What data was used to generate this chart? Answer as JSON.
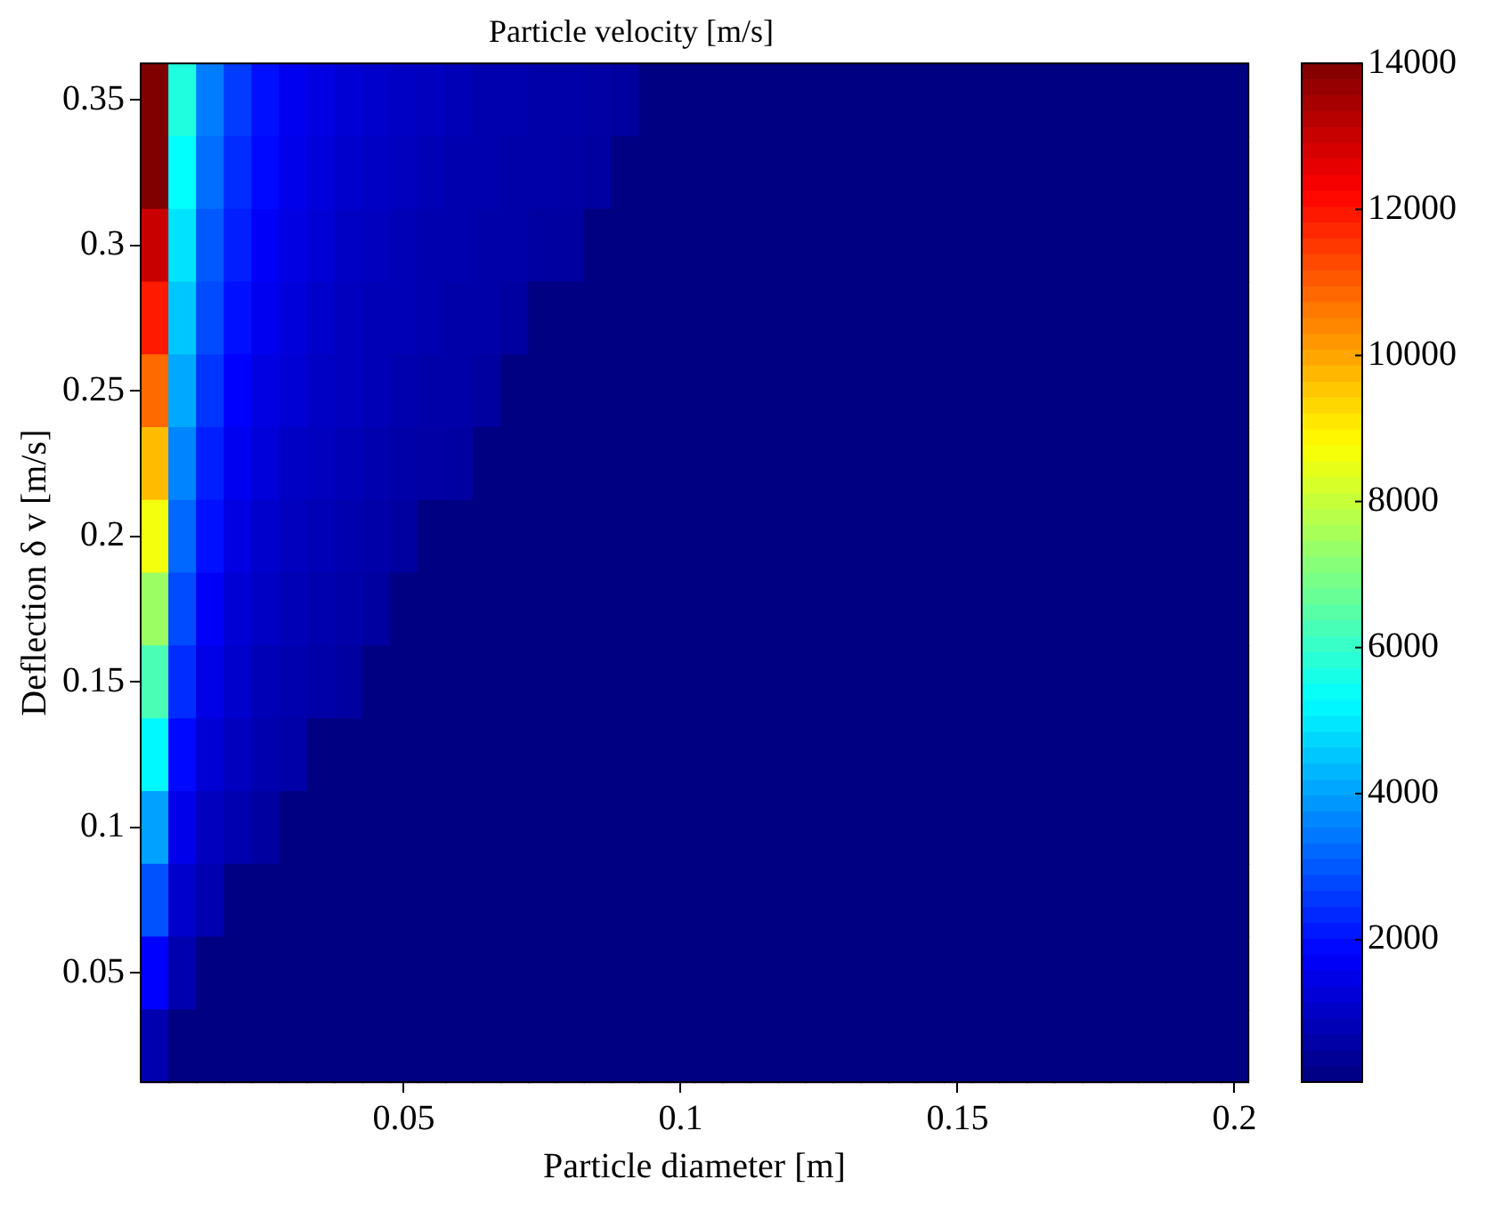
{
  "chart_data": {
    "type": "heatmap",
    "title": "Particle velocity [m/s]",
    "xlabel": "Particle diameter [m]",
    "ylabel": "Deflection δ v [m/s]",
    "categories": [
      null,
      null,
      null,
      null,
      null,
      null,
      null,
      null,
      null,
      "0.05",
      null,
      null,
      null,
      null,
      null,
      null,
      null,
      null,
      null,
      "0.1",
      null,
      null,
      null,
      null,
      null,
      null,
      null,
      null,
      null,
      "0.15",
      null,
      null,
      null,
      null,
      null,
      null,
      null,
      null,
      null,
      "0.2"
    ],
    "y_categories": [
      "0.35",
      null,
      "0.3",
      null,
      "0.25",
      null,
      "0.2",
      null,
      "0.15",
      null,
      "0.1",
      null,
      "0.05",
      null
    ],
    "cells": [
      [
        14000,
        5700,
        3500,
        2600,
        2000,
        1600,
        1400,
        1200,
        1100,
        1000,
        900,
        800,
        700,
        700,
        600,
        600,
        550,
        500,
        100,
        100,
        100,
        100,
        100,
        100,
        100,
        100,
        100,
        100,
        100,
        100,
        100,
        100,
        100,
        100,
        100,
        100,
        100,
        100,
        100,
        100
      ],
      [
        14000,
        5300,
        3300,
        2400,
        1900,
        1500,
        1300,
        1100,
        1000,
        900,
        800,
        700,
        700,
        600,
        600,
        550,
        500,
        100,
        100,
        100,
        100,
        100,
        100,
        100,
        100,
        100,
        100,
        100,
        100,
        100,
        100,
        100,
        100,
        100,
        100,
        100,
        100,
        100,
        100,
        100
      ],
      [
        13000,
        4900,
        3000,
        2200,
        1700,
        1400,
        1200,
        1000,
        900,
        800,
        700,
        700,
        600,
        600,
        500,
        500,
        100,
        100,
        100,
        100,
        100,
        100,
        100,
        100,
        100,
        100,
        100,
        100,
        100,
        100,
        100,
        100,
        100,
        100,
        100,
        100,
        100,
        100,
        100,
        100
      ],
      [
        11900,
        4500,
        2800,
        2000,
        1600,
        1300,
        1100,
        900,
        800,
        800,
        700,
        600,
        600,
        500,
        100,
        100,
        100,
        100,
        100,
        100,
        100,
        100,
        100,
        100,
        100,
        100,
        100,
        100,
        100,
        100,
        100,
        100,
        100,
        100,
        100,
        100,
        100,
        100,
        100,
        100
      ],
      [
        10800,
        4100,
        2500,
        1800,
        1400,
        1200,
        1000,
        900,
        800,
        700,
        600,
        600,
        500,
        100,
        100,
        100,
        100,
        100,
        100,
        100,
        100,
        100,
        100,
        100,
        100,
        100,
        100,
        100,
        100,
        100,
        100,
        100,
        100,
        100,
        100,
        100,
        100,
        100,
        100,
        100
      ],
      [
        9700,
        3600,
        2200,
        1600,
        1300,
        1000,
        900,
        800,
        700,
        600,
        550,
        500,
        100,
        100,
        100,
        100,
        100,
        100,
        100,
        100,
        100,
        100,
        100,
        100,
        100,
        100,
        100,
        100,
        100,
        100,
        100,
        100,
        100,
        100,
        100,
        100,
        100,
        100,
        100,
        100
      ],
      [
        8600,
        3200,
        2000,
        1400,
        1100,
        900,
        800,
        700,
        600,
        500,
        100,
        100,
        100,
        100,
        100,
        100,
        100,
        100,
        100,
        100,
        100,
        100,
        100,
        100,
        100,
        100,
        100,
        100,
        100,
        100,
        100,
        100,
        100,
        100,
        100,
        100,
        100,
        100,
        100,
        100
      ],
      [
        7400,
        2800,
        1700,
        1200,
        1000,
        800,
        700,
        600,
        500,
        100,
        100,
        100,
        100,
        100,
        100,
        100,
        100,
        100,
        100,
        100,
        100,
        100,
        100,
        100,
        100,
        100,
        100,
        100,
        100,
        100,
        100,
        100,
        100,
        100,
        100,
        100,
        100,
        100,
        100,
        100
      ],
      [
        6300,
        2400,
        1450,
        1100,
        800,
        700,
        600,
        500,
        100,
        100,
        100,
        100,
        100,
        100,
        100,
        100,
        100,
        100,
        100,
        100,
        100,
        100,
        100,
        100,
        100,
        100,
        100,
        100,
        100,
        100,
        100,
        100,
        100,
        100,
        100,
        100,
        100,
        100,
        100,
        100
      ],
      [
        5200,
        1900,
        1200,
        900,
        700,
        600,
        100,
        100,
        100,
        100,
        100,
        100,
        100,
        100,
        100,
        100,
        100,
        100,
        100,
        100,
        100,
        100,
        100,
        100,
        100,
        100,
        100,
        100,
        100,
        100,
        100,
        100,
        100,
        100,
        100,
        100,
        100,
        100,
        100,
        100
      ],
      [
        4000,
        1500,
        900,
        700,
        500,
        100,
        100,
        100,
        100,
        100,
        100,
        100,
        100,
        100,
        100,
        100,
        100,
        100,
        100,
        100,
        100,
        100,
        100,
        100,
        100,
        100,
        100,
        100,
        100,
        100,
        100,
        100,
        100,
        100,
        100,
        100,
        100,
        100,
        100,
        100
      ],
      [
        2900,
        1100,
        700,
        100,
        100,
        100,
        100,
        100,
        100,
        100,
        100,
        100,
        100,
        100,
        100,
        100,
        100,
        100,
        100,
        100,
        100,
        100,
        100,
        100,
        100,
        100,
        100,
        100,
        100,
        100,
        100,
        100,
        100,
        100,
        100,
        100,
        100,
        100,
        100,
        100
      ],
      [
        1800,
        700,
        100,
        100,
        100,
        100,
        100,
        100,
        100,
        100,
        100,
        100,
        100,
        100,
        100,
        100,
        100,
        100,
        100,
        100,
        100,
        100,
        100,
        100,
        100,
        100,
        100,
        100,
        100,
        100,
        100,
        100,
        100,
        100,
        100,
        100,
        100,
        100,
        100,
        100
      ],
      [
        700,
        100,
        100,
        100,
        100,
        100,
        100,
        100,
        100,
        100,
        100,
        100,
        100,
        100,
        100,
        100,
        100,
        100,
        100,
        100,
        100,
        100,
        100,
        100,
        100,
        100,
        100,
        100,
        100,
        100,
        100,
        100,
        100,
        100,
        100,
        100,
        100,
        100,
        100,
        100
      ]
    ],
    "clim": [
      50,
      14000
    ],
    "cticks": [
      2000,
      4000,
      6000,
      8000,
      10000,
      12000,
      14000
    ]
  }
}
